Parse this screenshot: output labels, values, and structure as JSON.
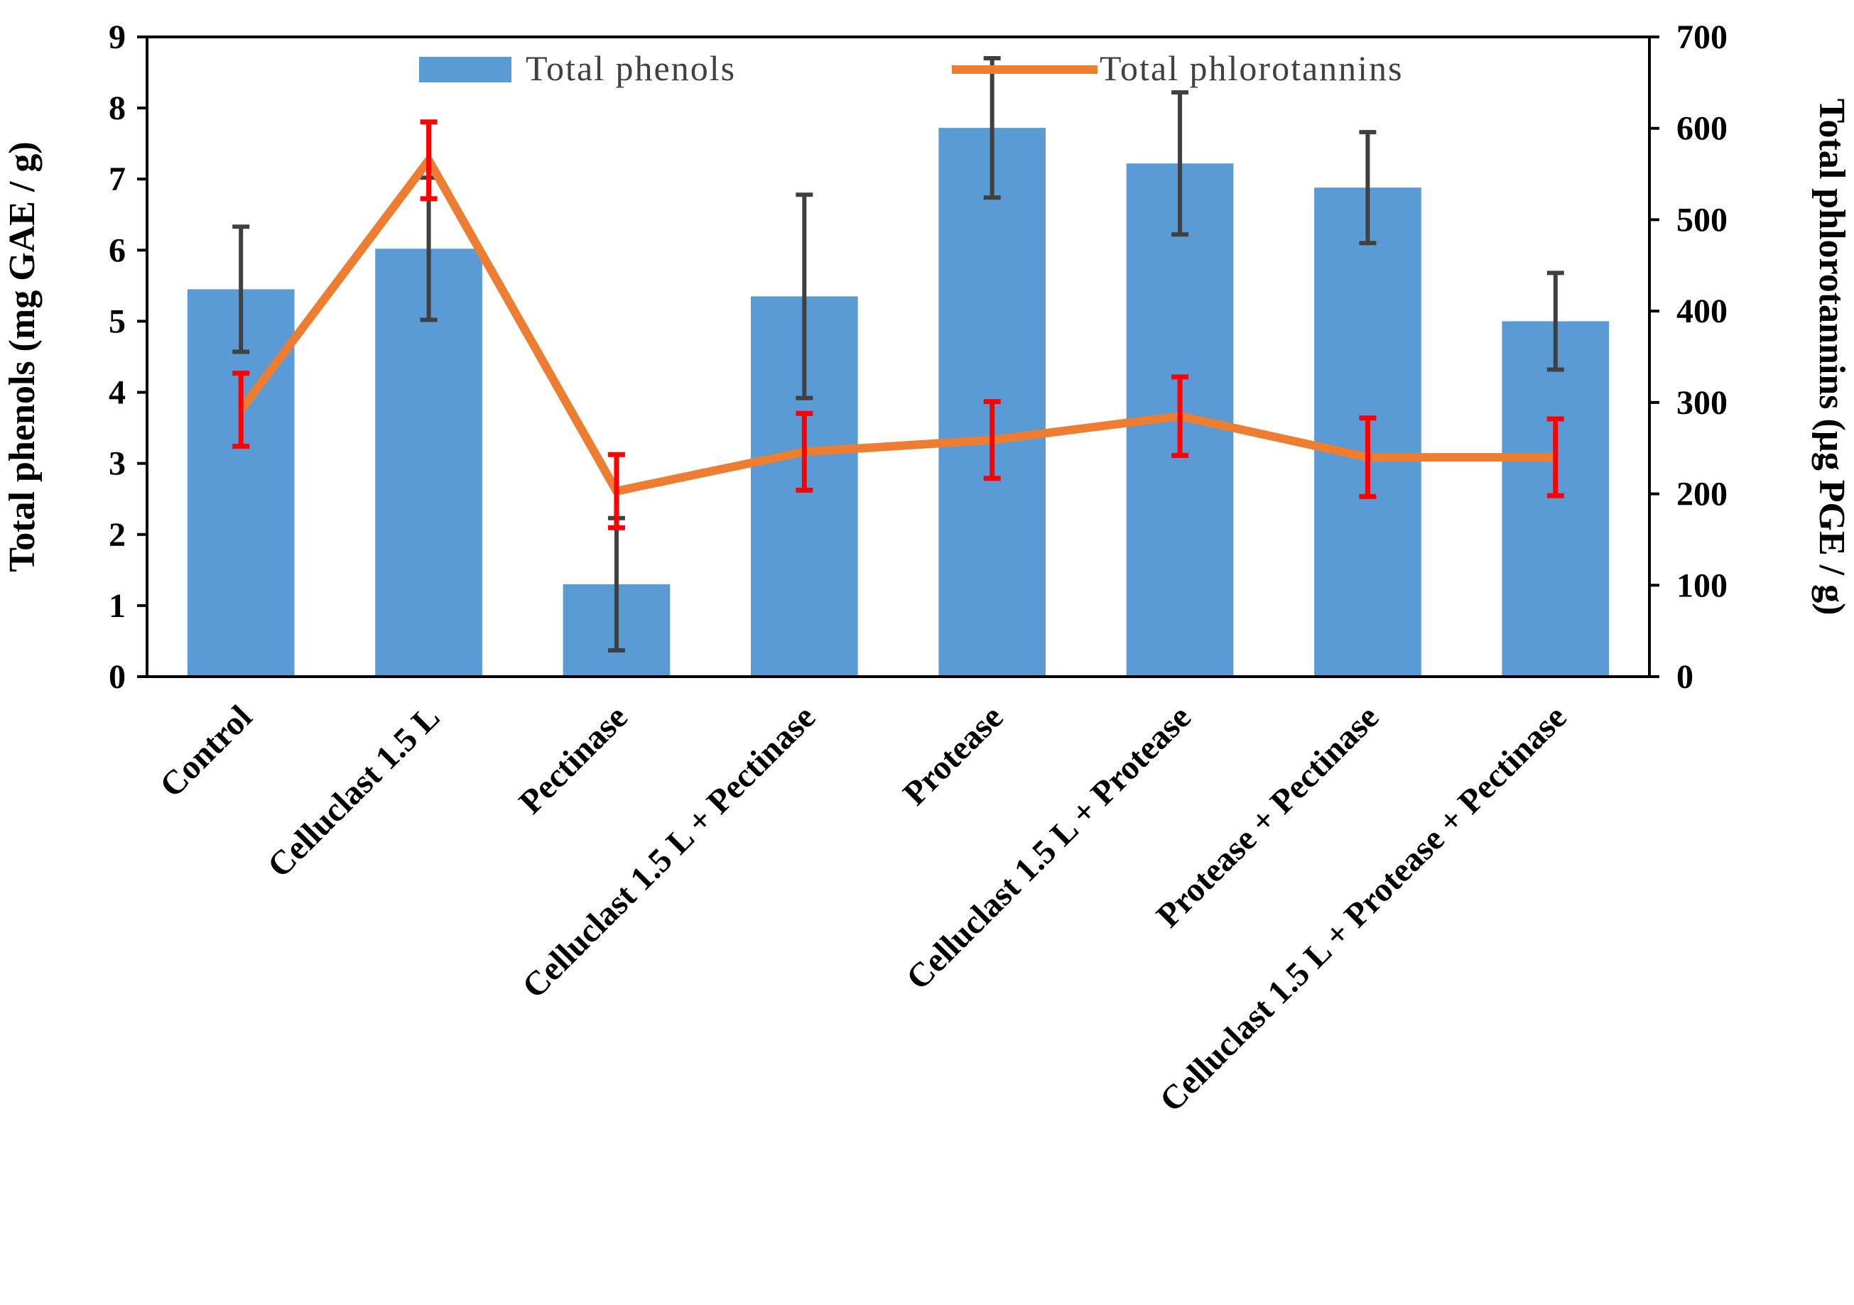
{
  "chart_data": {
    "type": "bar",
    "title": "",
    "categories": [
      "Control",
      "Celluclast 1.5 L",
      "Pectinase",
      "Celluclast 1.5 L + Pectinase",
      "Protease",
      "Celluclast 1.5 L + Protease",
      "Protease  + Pectinase",
      "Celluclast 1.5 L + Protease  + Pectinase"
    ],
    "series": [
      {
        "name": "Total phenols",
        "type": "bar",
        "axis": "left",
        "color": "#5B9BD5",
        "values": [
          5.45,
          6.02,
          1.3,
          5.35,
          7.72,
          7.22,
          6.88,
          5.0
        ],
        "errors": [
          0.88,
          1.0,
          0.93,
          1.43,
          0.98,
          1.0,
          0.78,
          0.68
        ],
        "error_color": "#404040"
      },
      {
        "name": "Total phlorotannins",
        "type": "line",
        "axis": "right",
        "color": "#ED7D31",
        "values": [
          292,
          565,
          203,
          246,
          259,
          285,
          240,
          240
        ],
        "errors": [
          40,
          42,
          40,
          42,
          42,
          43,
          43,
          42
        ],
        "error_color": "#FF0000"
      }
    ],
    "ylabel_left": "Total  phenols  (mg GAE  / g)",
    "ylabel_right": "Total  phlorotannins  (µg PGE  / g)",
    "ylim_left": [
      0,
      9
    ],
    "yticks_left": [
      "0",
      "1",
      "2",
      "3",
      "4",
      "5",
      "6",
      "7",
      "8",
      "9"
    ],
    "ylim_right": [
      0,
      700
    ],
    "yticks_right": [
      "0",
      "100",
      "200",
      "300",
      "400",
      "500",
      "600",
      "700"
    ],
    "legend_position": "top-inside",
    "grid": false
  }
}
